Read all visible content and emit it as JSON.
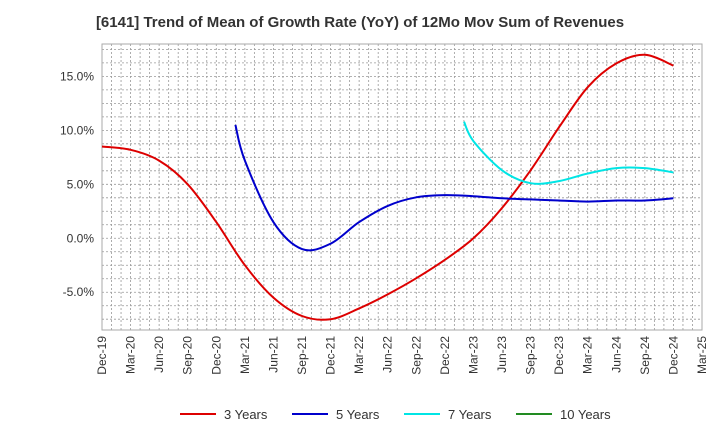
{
  "chart_data": {
    "type": "line",
    "title": "[6141]  Trend of Mean of Growth Rate (YoY) of 12Mo Mov Sum of Revenues",
    "xlabel": "",
    "ylabel": "",
    "ylim": [
      -8.5,
      18.0
    ],
    "y_ticks": [
      15.0,
      10.0,
      5.0,
      0.0,
      -5.0
    ],
    "y_tick_labels": [
      "15.0%",
      "10.0%",
      "5.0%",
      "0.0%",
      "-5.0%"
    ],
    "x_tick_labels": [
      "Dec-19",
      "Mar-20",
      "Jun-20",
      "Sep-20",
      "Dec-20",
      "Mar-21",
      "Jun-21",
      "Sep-21",
      "Dec-21",
      "Mar-22",
      "Jun-22",
      "Sep-22",
      "Dec-22",
      "Mar-23",
      "Jun-23",
      "Sep-23",
      "Dec-23",
      "Mar-24",
      "Jun-24",
      "Sep-24",
      "Dec-24",
      "Mar-25"
    ],
    "grid": true,
    "legend_position": "bottom",
    "series": [
      {
        "name": "3 Years",
        "color": "#dd0000",
        "points": [
          [
            0,
            8.5
          ],
          [
            1,
            8.2
          ],
          [
            2,
            7.2
          ],
          [
            3,
            5.0
          ],
          [
            4,
            1.5
          ],
          [
            5,
            -2.5
          ],
          [
            6,
            -5.5
          ],
          [
            7,
            -7.2
          ],
          [
            8,
            -7.5
          ],
          [
            9,
            -6.5
          ],
          [
            10,
            -5.2
          ],
          [
            11,
            -3.7
          ],
          [
            12,
            -2.0
          ],
          [
            13,
            0.0
          ],
          [
            14,
            2.8
          ],
          [
            15,
            6.3
          ],
          [
            16,
            10.3
          ],
          [
            17,
            14.0
          ],
          [
            18,
            16.2
          ],
          [
            19,
            17.0
          ],
          [
            20,
            16.0
          ]
        ]
      },
      {
        "name": "5 Years",
        "color": "#0000cc",
        "points": [
          [
            4.67,
            10.5
          ],
          [
            5,
            7.2
          ],
          [
            6,
            1.5
          ],
          [
            7,
            -1.0
          ],
          [
            8,
            -0.5
          ],
          [
            9,
            1.5
          ],
          [
            10,
            3.0
          ],
          [
            11,
            3.8
          ],
          [
            12,
            4.0
          ],
          [
            13,
            3.9
          ],
          [
            14,
            3.7
          ],
          [
            15,
            3.6
          ],
          [
            16,
            3.5
          ],
          [
            17,
            3.4
          ],
          [
            18,
            3.5
          ],
          [
            19,
            3.5
          ],
          [
            20,
            3.7
          ]
        ]
      },
      {
        "name": "7 Years",
        "color": "#00e5e5",
        "points": [
          [
            12.67,
            10.8
          ],
          [
            13,
            9.0
          ],
          [
            14,
            6.3
          ],
          [
            15,
            5.1
          ],
          [
            16,
            5.3
          ],
          [
            17,
            6.0
          ],
          [
            18,
            6.5
          ],
          [
            19,
            6.5
          ],
          [
            20,
            6.1
          ]
        ]
      },
      {
        "name": "10 Years",
        "color": "#228b22",
        "points": []
      }
    ]
  }
}
